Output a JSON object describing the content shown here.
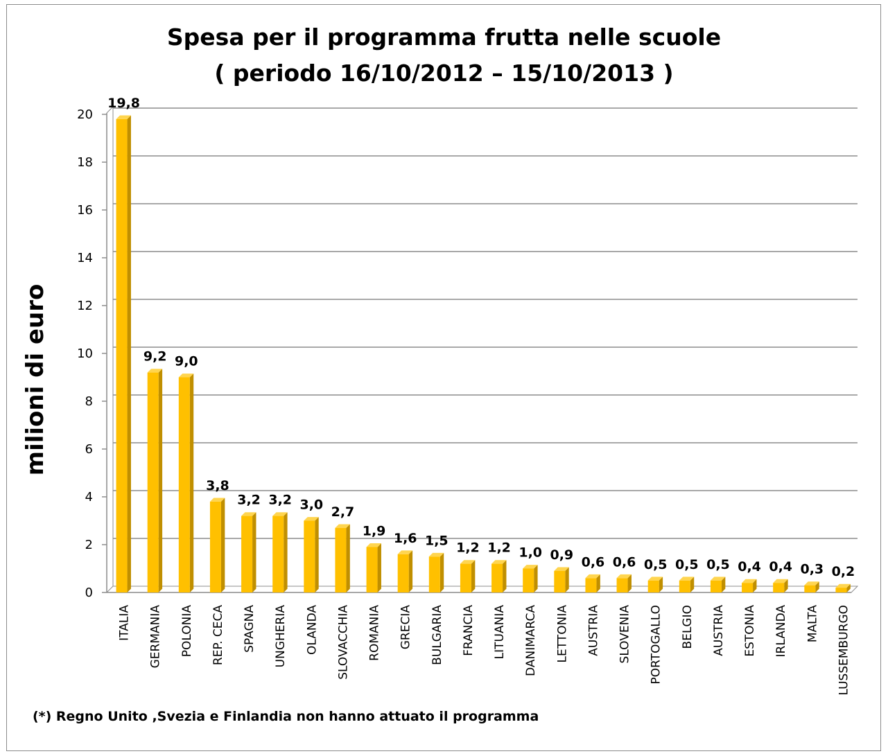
{
  "chart_data": {
    "type": "bar",
    "title": "Spesa per il programma frutta nelle scuole",
    "subtitle": "( periodo 16/10/2012 – 15/10/2013 )",
    "ylabel": "milioni di euro",
    "xlabel": "",
    "ylim": [
      0,
      20
    ],
    "yticks": [
      "0",
      "2",
      "4",
      "6",
      "8",
      "10",
      "12",
      "14",
      "16",
      "18",
      "20"
    ],
    "categories": [
      "ITALIA",
      "GERMANIA",
      "POLONIA",
      "REP. CECA",
      "SPAGNA",
      "UNGHERIA",
      "OLANDA",
      "SLOVACCHIA",
      "ROMANIA",
      "GRECIA",
      "BULGARIA",
      "FRANCIA",
      "LITUANIA",
      "DANIMARCA",
      "LETTONIA",
      "AUSTRIA",
      "SLOVENIA",
      "PORTOGALLO",
      "BELGIO",
      "AUSTRIA",
      "ESTONIA",
      "IRLANDA",
      "MALTA",
      "LUSSEMBURGO"
    ],
    "values": [
      19.8,
      9.2,
      9.0,
      3.8,
      3.2,
      3.2,
      3.0,
      2.7,
      1.9,
      1.6,
      1.5,
      1.2,
      1.2,
      1.0,
      0.9,
      0.6,
      0.6,
      0.5,
      0.5,
      0.5,
      0.4,
      0.4,
      0.3,
      0.2
    ],
    "data_labels": [
      "19,8",
      "9,2",
      "9,0",
      "3,8",
      "3,2",
      "3,2",
      "3,0",
      "2,7",
      "1,9",
      "1,6",
      "1,5",
      "1,2",
      "1,2",
      "1,0",
      "0,9",
      "0,6",
      "0,6",
      "0,5",
      "0,5",
      "0,5",
      "0,4",
      "0,4",
      "0,3",
      "0,2"
    ],
    "grid": true,
    "legend": "none",
    "bar_color": "#ffc000",
    "bar_side_color": "#c08f00",
    "footnote": "(*) Regno Unito ,Svezia  e Finlandia non hanno attuato il programma"
  }
}
